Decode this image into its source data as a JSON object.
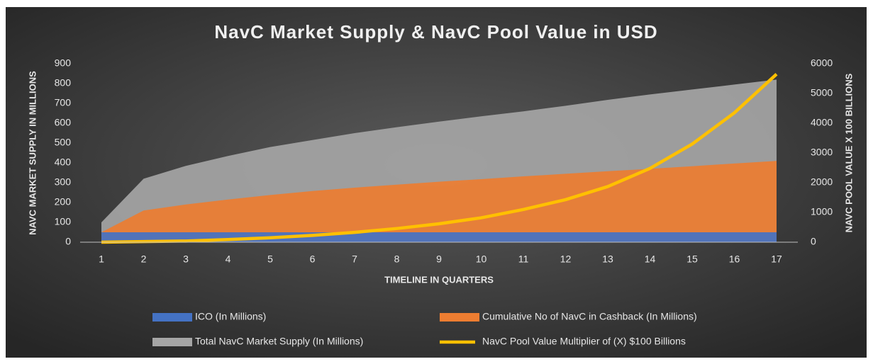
{
  "chart_data": {
    "type": "area-line",
    "title": "NavC Market Supply & NavC Pool Value in USD",
    "x_label": "TIMELINE IN QUARTERS",
    "y_label": "NAVC MARKET SUPPLY IN MILLIONS",
    "y2_label": "NAVC POOL VALUE X 100 BILLIONS",
    "categories": [
      "1",
      "2",
      "3",
      "4",
      "5",
      "6",
      "7",
      "8",
      "9",
      "10",
      "11",
      "12",
      "13",
      "14",
      "15",
      "16",
      "17"
    ],
    "ylim": [
      0,
      900
    ],
    "yticks": [
      0,
      100,
      200,
      300,
      400,
      500,
      600,
      700,
      800,
      900
    ],
    "y2lim": [
      0,
      6000
    ],
    "y2ticks": [
      0,
      1000,
      2000,
      3000,
      4000,
      5000,
      6000
    ],
    "grid": false,
    "legend": "bottom",
    "series": [
      {
        "name": "Total NavC Market Supply (In Millions)",
        "type": "area",
        "color": "#a5a5a5",
        "values": [
          100,
          320,
          385,
          435,
          480,
          515,
          550,
          580,
          608,
          635,
          660,
          688,
          718,
          745,
          770,
          795,
          820
        ]
      },
      {
        "name": "Cumulative No of NavC in Cashback (In Millions)",
        "type": "area",
        "color": "#ed7d31",
        "values": [
          50,
          160,
          190,
          215,
          238,
          258,
          275,
          290,
          305,
          318,
          332,
          345,
          358,
          370,
          383,
          397,
          410
        ]
      },
      {
        "name": "ICO (In Millions)",
        "type": "area",
        "color": "#4472c4",
        "values": [
          50,
          50,
          50,
          50,
          50,
          50,
          50,
          50,
          50,
          50,
          50,
          50,
          50,
          50,
          50,
          50,
          50
        ]
      },
      {
        "name": "NavC Pool Value Multiplier of (X) $100 Billions",
        "type": "line",
        "color": "#ffc000",
        "axis": "y2",
        "values": [
          0,
          20,
          40,
          90,
          150,
          230,
          330,
          460,
          620,
          820,
          1100,
          1430,
          1870,
          2480,
          3300,
          4350,
          5650
        ]
      }
    ]
  }
}
